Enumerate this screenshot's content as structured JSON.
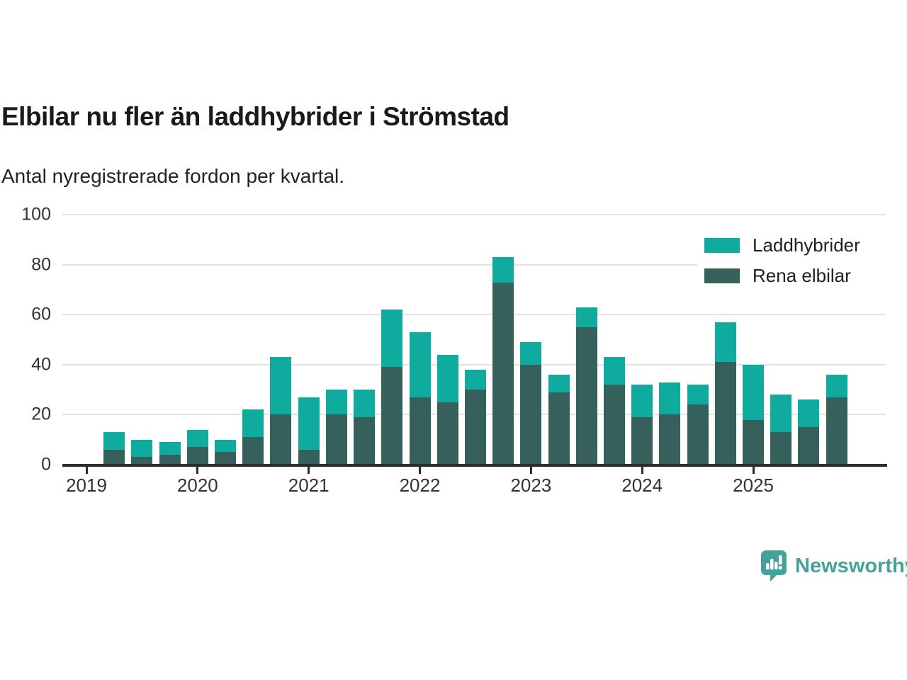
{
  "page": {
    "title": "Elbilar nu fler än laddhybrider i Strömstad",
    "subtitle": "Antal nyregistrerade fordon per kvartal."
  },
  "colors": {
    "laddhybrider": "#0fab9f",
    "rena_elbilar": "#36605b",
    "axis": "#2d2d2d",
    "gridline": "#e3e3e3",
    "text": "#333333",
    "logo": "#45a29b"
  },
  "chart_data": {
    "type": "bar",
    "stacked": true,
    "title": "Elbilar nu fler än laddhybrider i Strömstad",
    "subtitle": "Antal nyregistrerade fordon per kvartal.",
    "xlabel": "",
    "ylabel": "",
    "ylim": [
      0,
      100
    ],
    "y_ticks": [
      0,
      20,
      40,
      60,
      80,
      100
    ],
    "grid": "horizontal",
    "legend_position": "top-right",
    "x_tick_labels": [
      "2019",
      "2020",
      "2021",
      "2022",
      "2023",
      "2024",
      "2025"
    ],
    "categories": [
      "2019 Q2",
      "2019 Q3",
      "2019 Q4",
      "2020 Q1",
      "2020 Q2",
      "2020 Q3",
      "2020 Q4",
      "2021 Q1",
      "2021 Q2",
      "2021 Q3",
      "2021 Q4",
      "2022 Q1",
      "2022 Q2",
      "2022 Q3",
      "2022 Q4",
      "2023 Q1",
      "2023 Q2",
      "2023 Q3",
      "2023 Q4",
      "2024 Q1",
      "2024 Q2",
      "2024 Q3",
      "2024 Q4",
      "2025 Q1",
      "2025 Q2",
      "2025 Q3",
      "2025 Q4"
    ],
    "series": [
      {
        "name": "Laddhybrider",
        "color": "#0fab9f",
        "values": [
          7,
          7,
          5,
          7,
          5,
          11,
          23,
          21,
          10,
          11,
          23,
          26,
          19,
          8,
          10,
          9,
          7,
          8,
          11,
          13,
          13,
          8,
          16,
          22,
          15,
          11,
          9
        ]
      },
      {
        "name": "Rena elbilar",
        "color": "#36605b",
        "values": [
          6,
          3,
          4,
          7,
          5,
          11,
          20,
          6,
          20,
          19,
          39,
          27,
          25,
          30,
          73,
          40,
          29,
          55,
          32,
          19,
          20,
          24,
          41,
          18,
          13,
          15,
          27
        ]
      }
    ]
  },
  "branding": {
    "logo_text": "Newsworthy"
  }
}
